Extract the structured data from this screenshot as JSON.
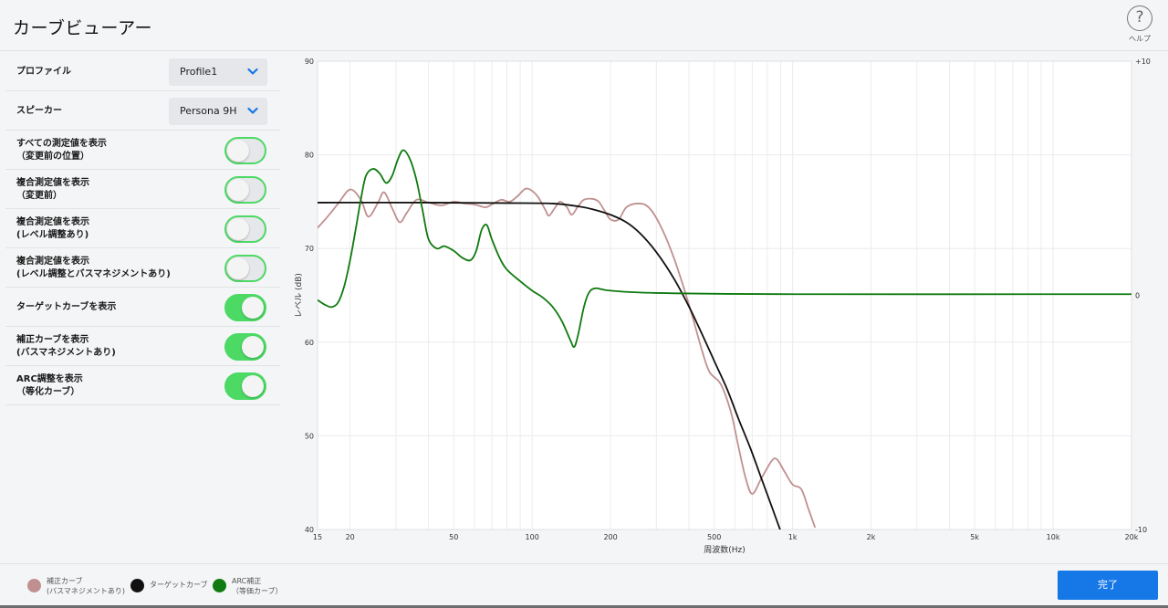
{
  "header": {
    "title": "カーブビューアー",
    "help_label": "ヘルプ",
    "help_glyph": "?"
  },
  "sidebar": {
    "profile": {
      "label": "プロファイル",
      "value": "Profile1"
    },
    "speaker": {
      "label": "スピーカー",
      "value": "Persona 9H"
    },
    "toggles": [
      {
        "label": "すべての測定値を表示\n（変更前の位置）",
        "on": false
      },
      {
        "label": "複合測定値を表示\n（変更前）",
        "on": false
      },
      {
        "label": "複合測定値を表示\n(レベル調整あり)",
        "on": false
      },
      {
        "label": "複合測定値を表示\n(レベル調整とバスマネジメントあり)",
        "on": false
      },
      {
        "label": "ターゲットカーブを表示",
        "on": true
      },
      {
        "label": "補正カーブを表示\n(バスマネジメントあり)",
        "on": true
      },
      {
        "label": "ARC調整を表示\n（等化カーブ）",
        "on": true
      }
    ]
  },
  "chart_data": {
    "type": "line",
    "xlabel": "周波数(Hz)",
    "ylabel": "レベル (dB)",
    "x_scale": "log",
    "xlim": [
      15,
      20000
    ],
    "ylim": [
      40,
      90
    ],
    "y2lim": [
      -10,
      10
    ],
    "x_ticks": [
      15,
      20,
      50,
      100,
      200,
      500,
      1000,
      2000,
      5000,
      10000,
      20000
    ],
    "x_tick_labels": [
      "15",
      "20",
      "50",
      "100",
      "200",
      "500",
      "1k",
      "2k",
      "5k",
      "10k",
      "20k"
    ],
    "y_ticks": [
      40,
      50,
      60,
      70,
      80,
      90
    ],
    "y2_ticks": [
      -10,
      0,
      10
    ],
    "y2_tick_labels": [
      "-10",
      "0",
      "+10"
    ],
    "grid": true,
    "series": [
      {
        "name": "補正カーブ\n(バスマネジメントあり)",
        "color": "#c09090",
        "axis": "left",
        "points": [
          [
            15,
            72.2
          ],
          [
            16.5,
            73.5
          ],
          [
            18,
            74.8
          ],
          [
            20,
            76.3
          ],
          [
            22,
            75.2
          ],
          [
            23.5,
            73.4
          ],
          [
            25.5,
            74.8
          ],
          [
            27,
            76
          ],
          [
            29,
            74.3
          ],
          [
            31,
            72.8
          ],
          [
            33,
            73.8
          ],
          [
            36,
            75.2
          ],
          [
            40,
            74.9
          ],
          [
            45,
            74.6
          ],
          [
            50,
            75
          ],
          [
            55,
            74.8
          ],
          [
            60,
            74.7
          ],
          [
            66,
            74.4
          ],
          [
            70,
            74.7
          ],
          [
            76,
            75.2
          ],
          [
            82,
            75
          ],
          [
            88,
            75.6
          ],
          [
            95,
            76.4
          ],
          [
            104,
            75.7
          ],
          [
            112,
            74.2
          ],
          [
            116,
            73.5
          ],
          [
            122,
            74.3
          ],
          [
            128,
            75
          ],
          [
            136,
            74.4
          ],
          [
            142,
            73.6
          ],
          [
            150,
            74.5
          ],
          [
            158,
            75.2
          ],
          [
            170,
            75.3
          ],
          [
            180,
            75
          ],
          [
            190,
            74
          ],
          [
            200,
            73.1
          ],
          [
            215,
            73.1
          ],
          [
            230,
            74.4
          ],
          [
            255,
            74.8
          ],
          [
            280,
            74.4
          ],
          [
            310,
            72.5
          ],
          [
            350,
            69
          ],
          [
            400,
            64
          ],
          [
            450,
            59
          ],
          [
            480,
            56.8
          ],
          [
            530,
            55.5
          ],
          [
            580,
            52.5
          ],
          [
            620,
            48.8
          ],
          [
            660,
            45.5
          ],
          [
            700,
            43.8
          ],
          [
            760,
            45.5
          ],
          [
            830,
            47.3
          ],
          [
            870,
            47.5
          ],
          [
            930,
            46.2
          ],
          [
            1000,
            44.8
          ],
          [
            1080,
            44.3
          ],
          [
            1150,
            42.2
          ],
          [
            1220,
            40.2
          ]
        ]
      },
      {
        "name": "ターゲットカーブ",
        "color": "#111111",
        "axis": "left",
        "points": [
          [
            15,
            74.9
          ],
          [
            40,
            74.9
          ],
          [
            80,
            74.85
          ],
          [
            120,
            74.8
          ],
          [
            150,
            74.5
          ],
          [
            170,
            74.2
          ],
          [
            200,
            73.6
          ],
          [
            230,
            72.8
          ],
          [
            260,
            71.6
          ],
          [
            300,
            69.6
          ],
          [
            350,
            66.8
          ],
          [
            400,
            63.8
          ],
          [
            450,
            60.8
          ],
          [
            500,
            58
          ],
          [
            560,
            55
          ],
          [
            620,
            51.8
          ],
          [
            690,
            48.6
          ],
          [
            760,
            45.4
          ],
          [
            830,
            42.5
          ],
          [
            900,
            39.8
          ]
        ]
      },
      {
        "name": "ARC補正\n（等価カーブ）",
        "color": "#0f7a0f",
        "axis": "right",
        "points": [
          [
            15,
            -0.2
          ],
          [
            16,
            -0.4
          ],
          [
            17,
            -0.5
          ],
          [
            18,
            -0.3
          ],
          [
            19,
            0.4
          ],
          [
            20,
            1.5
          ],
          [
            21,
            2.8
          ],
          [
            22,
            4.1
          ],
          [
            23,
            5.1
          ],
          [
            24.5,
            5.4
          ],
          [
            26,
            5.2
          ],
          [
            27.5,
            4.8
          ],
          [
            29,
            5.1
          ],
          [
            30.5,
            5.8
          ],
          [
            32,
            6.2
          ],
          [
            34,
            5.8
          ],
          [
            36,
            4.9
          ],
          [
            38,
            3.6
          ],
          [
            40,
            2.4
          ],
          [
            43,
            2
          ],
          [
            46,
            2.1
          ],
          [
            50,
            1.9
          ],
          [
            54,
            1.6
          ],
          [
            58,
            1.5
          ],
          [
            61,
            1.9
          ],
          [
            64,
            2.8
          ],
          [
            67,
            3
          ],
          [
            70,
            2.4
          ],
          [
            75,
            1.6
          ],
          [
            80,
            1.1
          ],
          [
            90,
            0.6
          ],
          [
            100,
            0.2
          ],
          [
            110,
            -0.1
          ],
          [
            120,
            -0.5
          ],
          [
            130,
            -1.1
          ],
          [
            140,
            -1.9
          ],
          [
            145,
            -2.2
          ],
          [
            150,
            -1.7
          ],
          [
            158,
            -0.5
          ],
          [
            165,
            0.1
          ],
          [
            175,
            0.3
          ],
          [
            200,
            0.2
          ],
          [
            300,
            0.1
          ],
          [
            1000,
            0.05
          ],
          [
            20000,
            0.05
          ]
        ]
      }
    ]
  },
  "footer": {
    "done_label": "完了"
  }
}
